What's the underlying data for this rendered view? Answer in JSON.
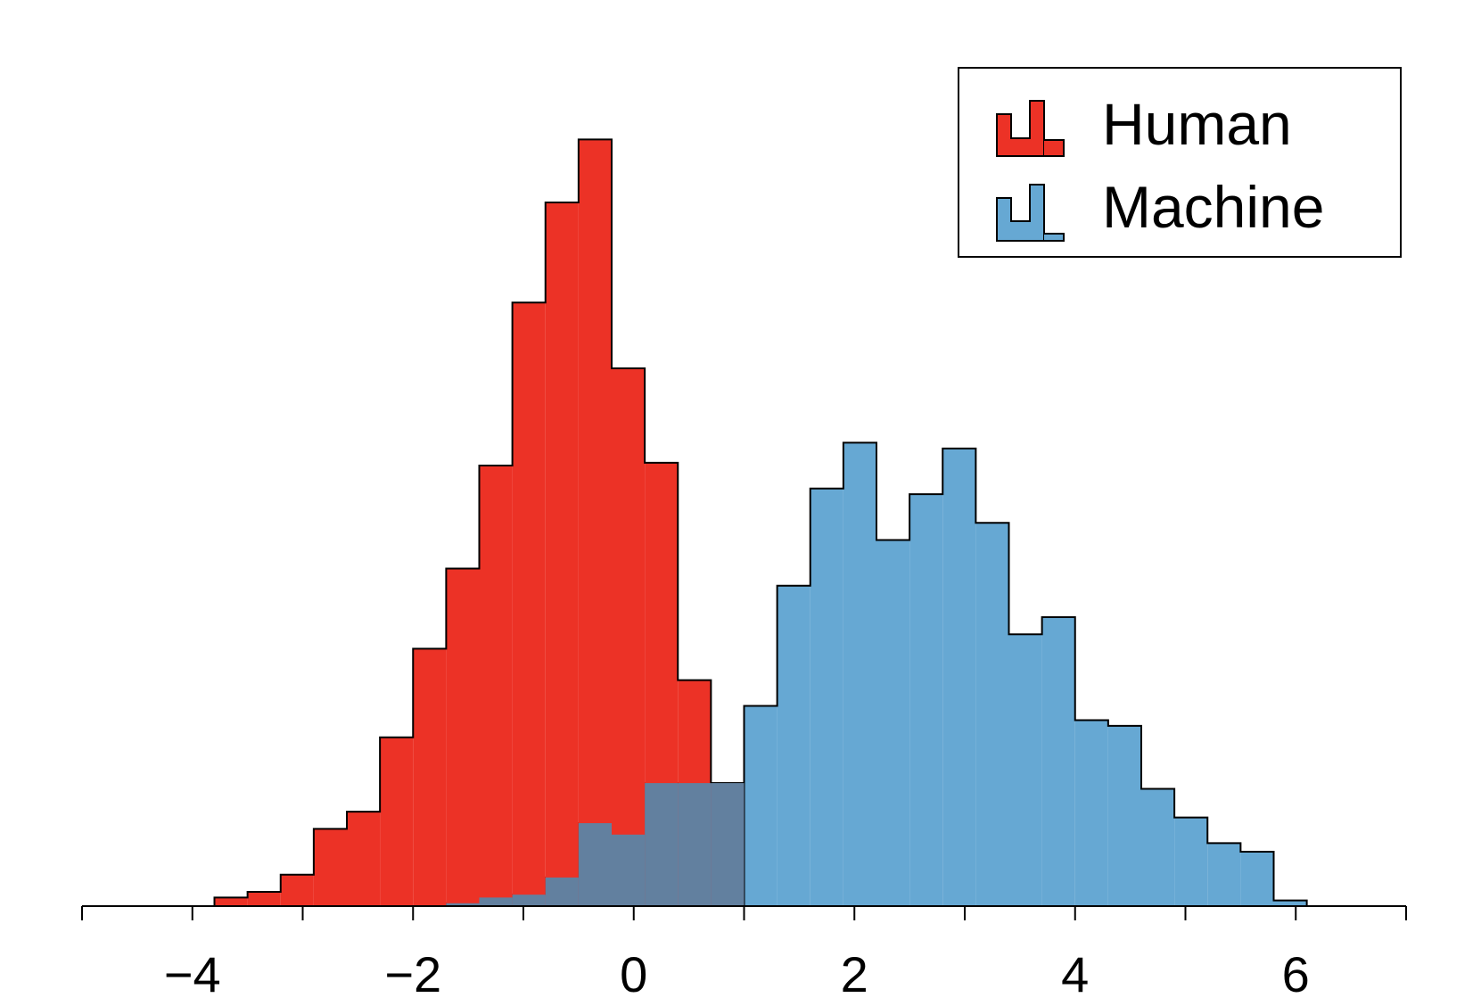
{
  "chart_data": {
    "type": "histogram",
    "title": "",
    "xlabel": "",
    "ylabel": "",
    "xlim": [
      -5,
      7
    ],
    "ylim": [
      0,
      270
    ],
    "bin_width": 0.3,
    "bin_start": -3.8,
    "series": [
      {
        "name": "Human",
        "color": "#ec3226",
        "counts": [
          3,
          5,
          11,
          27,
          33,
          59,
          90,
          118,
          154,
          211,
          246,
          268,
          188,
          155,
          79,
          43
        ]
      },
      {
        "name": "Machine",
        "color": "#66a8d3",
        "counts": [
          0,
          0,
          0,
          0,
          0,
          0,
          0,
          1,
          3,
          4,
          10,
          29,
          25,
          43,
          43,
          43,
          70,
          112,
          146,
          162,
          128,
          144,
          160,
          134,
          95,
          101,
          65,
          63,
          41,
          31,
          22,
          19,
          2
        ]
      }
    ],
    "x_ticks": [
      -5,
      -4,
      -3,
      -2,
      -1,
      0,
      1,
      2,
      3,
      4,
      5,
      6,
      7
    ],
    "x_tick_labels": [
      {
        "value": -4,
        "label": "−4"
      },
      {
        "value": -2,
        "label": "−2"
      },
      {
        "value": 0,
        "label": "0"
      },
      {
        "value": 2,
        "label": "2"
      },
      {
        "value": 4,
        "label": "4"
      },
      {
        "value": 6,
        "label": "6"
      }
    ],
    "legend": {
      "placement": "top-right",
      "entries": [
        "Human",
        "Machine"
      ]
    }
  }
}
